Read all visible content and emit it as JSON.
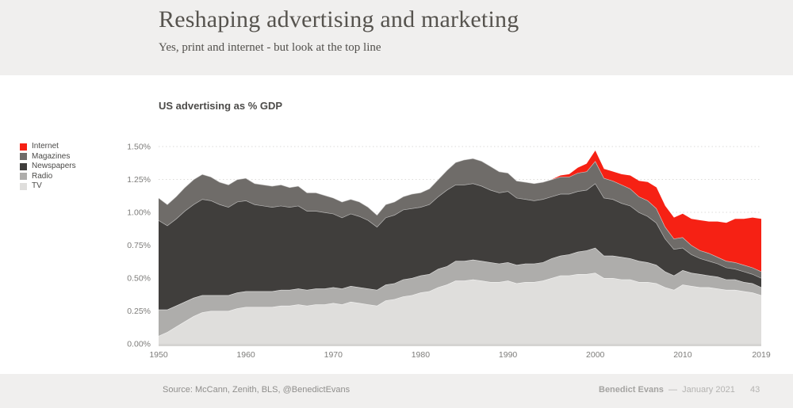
{
  "slide": {
    "title": "Reshaping advertising and marketing",
    "subtitle": "Yes, print and internet - but look at the top line",
    "footer": {
      "source": "Source: McCann, Zenith, BLS, @BenedictEvans",
      "author": "Benedict Evans",
      "separator": "—",
      "date": "January 2021",
      "page_number": "43"
    }
  },
  "chart_data": {
    "type": "area",
    "stacked": true,
    "title": "US advertising as % GDP",
    "xlabel": "",
    "ylabel": "",
    "ylim": [
      0,
      1.5
    ],
    "grid": "horizontal-dotted",
    "legend_position": "left",
    "x_ticks": [
      1950,
      1960,
      1970,
      1980,
      1990,
      2000,
      2010,
      2019
    ],
    "y_ticks": [
      {
        "value": 0.0,
        "label": "0.00%"
      },
      {
        "value": 0.25,
        "label": "0.25%"
      },
      {
        "value": 0.5,
        "label": "0.50%"
      },
      {
        "value": 0.75,
        "label": "0.75%"
      },
      {
        "value": 1.0,
        "label": "1.00%"
      },
      {
        "value": 1.25,
        "label": "1.25%"
      },
      {
        "value": 1.5,
        "label": "1.50%"
      }
    ],
    "x": [
      1950,
      1951,
      1952,
      1953,
      1954,
      1955,
      1956,
      1957,
      1958,
      1959,
      1960,
      1961,
      1962,
      1963,
      1964,
      1965,
      1966,
      1967,
      1968,
      1969,
      1970,
      1971,
      1972,
      1973,
      1974,
      1975,
      1976,
      1977,
      1978,
      1979,
      1980,
      1981,
      1982,
      1983,
      1984,
      1985,
      1986,
      1987,
      1988,
      1989,
      1990,
      1991,
      1992,
      1993,
      1994,
      1995,
      1996,
      1997,
      1998,
      1999,
      2000,
      2001,
      2002,
      2003,
      2004,
      2005,
      2006,
      2007,
      2008,
      2009,
      2010,
      2011,
      2012,
      2013,
      2014,
      2015,
      2016,
      2017,
      2018,
      2019
    ],
    "series": [
      {
        "name": "TV",
        "color": "#dfdedc",
        "values": [
          0.06,
          0.09,
          0.13,
          0.17,
          0.21,
          0.24,
          0.25,
          0.25,
          0.25,
          0.27,
          0.28,
          0.28,
          0.28,
          0.28,
          0.29,
          0.29,
          0.3,
          0.29,
          0.3,
          0.3,
          0.31,
          0.3,
          0.32,
          0.31,
          0.3,
          0.29,
          0.33,
          0.34,
          0.36,
          0.37,
          0.39,
          0.4,
          0.43,
          0.45,
          0.48,
          0.48,
          0.49,
          0.48,
          0.47,
          0.47,
          0.48,
          0.46,
          0.47,
          0.47,
          0.48,
          0.5,
          0.52,
          0.52,
          0.53,
          0.53,
          0.54,
          0.5,
          0.5,
          0.49,
          0.49,
          0.47,
          0.47,
          0.46,
          0.43,
          0.41,
          0.45,
          0.44,
          0.43,
          0.43,
          0.42,
          0.41,
          0.41,
          0.4,
          0.39,
          0.37
        ]
      },
      {
        "name": "Radio",
        "color": "#aeadab",
        "values": [
          0.2,
          0.17,
          0.16,
          0.15,
          0.14,
          0.13,
          0.12,
          0.12,
          0.12,
          0.12,
          0.12,
          0.12,
          0.12,
          0.12,
          0.12,
          0.12,
          0.12,
          0.12,
          0.12,
          0.12,
          0.12,
          0.12,
          0.12,
          0.12,
          0.12,
          0.12,
          0.12,
          0.12,
          0.13,
          0.13,
          0.13,
          0.13,
          0.14,
          0.14,
          0.15,
          0.15,
          0.15,
          0.15,
          0.15,
          0.14,
          0.14,
          0.14,
          0.14,
          0.14,
          0.14,
          0.15,
          0.15,
          0.16,
          0.17,
          0.18,
          0.19,
          0.17,
          0.17,
          0.17,
          0.16,
          0.16,
          0.15,
          0.14,
          0.12,
          0.11,
          0.11,
          0.1,
          0.1,
          0.09,
          0.09,
          0.08,
          0.08,
          0.07,
          0.07,
          0.06
        ]
      },
      {
        "name": "Newspapers",
        "color": "#403e3c",
        "values": [
          0.68,
          0.64,
          0.66,
          0.69,
          0.71,
          0.73,
          0.72,
          0.69,
          0.67,
          0.69,
          0.69,
          0.66,
          0.65,
          0.64,
          0.64,
          0.63,
          0.63,
          0.6,
          0.59,
          0.58,
          0.56,
          0.54,
          0.55,
          0.54,
          0.52,
          0.48,
          0.51,
          0.52,
          0.53,
          0.53,
          0.52,
          0.53,
          0.55,
          0.58,
          0.58,
          0.58,
          0.58,
          0.57,
          0.55,
          0.54,
          0.54,
          0.51,
          0.49,
          0.48,
          0.48,
          0.47,
          0.47,
          0.46,
          0.46,
          0.46,
          0.49,
          0.44,
          0.43,
          0.41,
          0.4,
          0.37,
          0.35,
          0.32,
          0.25,
          0.2,
          0.17,
          0.14,
          0.12,
          0.11,
          0.1,
          0.09,
          0.08,
          0.08,
          0.07,
          0.07
        ]
      },
      {
        "name": "Magazines",
        "color": "#6f6c69",
        "values": [
          0.17,
          0.16,
          0.17,
          0.18,
          0.19,
          0.19,
          0.18,
          0.17,
          0.17,
          0.17,
          0.17,
          0.16,
          0.16,
          0.16,
          0.16,
          0.15,
          0.15,
          0.14,
          0.14,
          0.13,
          0.12,
          0.12,
          0.11,
          0.11,
          0.1,
          0.09,
          0.1,
          0.1,
          0.1,
          0.11,
          0.11,
          0.12,
          0.13,
          0.15,
          0.17,
          0.19,
          0.19,
          0.19,
          0.18,
          0.16,
          0.14,
          0.13,
          0.13,
          0.13,
          0.13,
          0.13,
          0.13,
          0.13,
          0.14,
          0.14,
          0.17,
          0.15,
          0.14,
          0.14,
          0.13,
          0.12,
          0.12,
          0.11,
          0.09,
          0.08,
          0.08,
          0.07,
          0.06,
          0.06,
          0.05,
          0.05,
          0.05,
          0.05,
          0.05,
          0.05
        ]
      },
      {
        "name": "Internet",
        "color": "#f62114",
        "values": [
          0,
          0,
          0,
          0,
          0,
          0,
          0,
          0,
          0,
          0,
          0,
          0,
          0,
          0,
          0,
          0,
          0,
          0,
          0,
          0,
          0,
          0,
          0,
          0,
          0,
          0,
          0,
          0,
          0,
          0,
          0,
          0,
          0,
          0,
          0,
          0,
          0,
          0,
          0,
          0,
          0,
          0,
          0,
          0,
          0,
          0,
          0.01,
          0.02,
          0.04,
          0.06,
          0.08,
          0.07,
          0.07,
          0.08,
          0.1,
          0.12,
          0.14,
          0.16,
          0.16,
          0.16,
          0.18,
          0.2,
          0.23,
          0.24,
          0.27,
          0.29,
          0.33,
          0.35,
          0.38,
          0.4
        ]
      }
    ]
  }
}
